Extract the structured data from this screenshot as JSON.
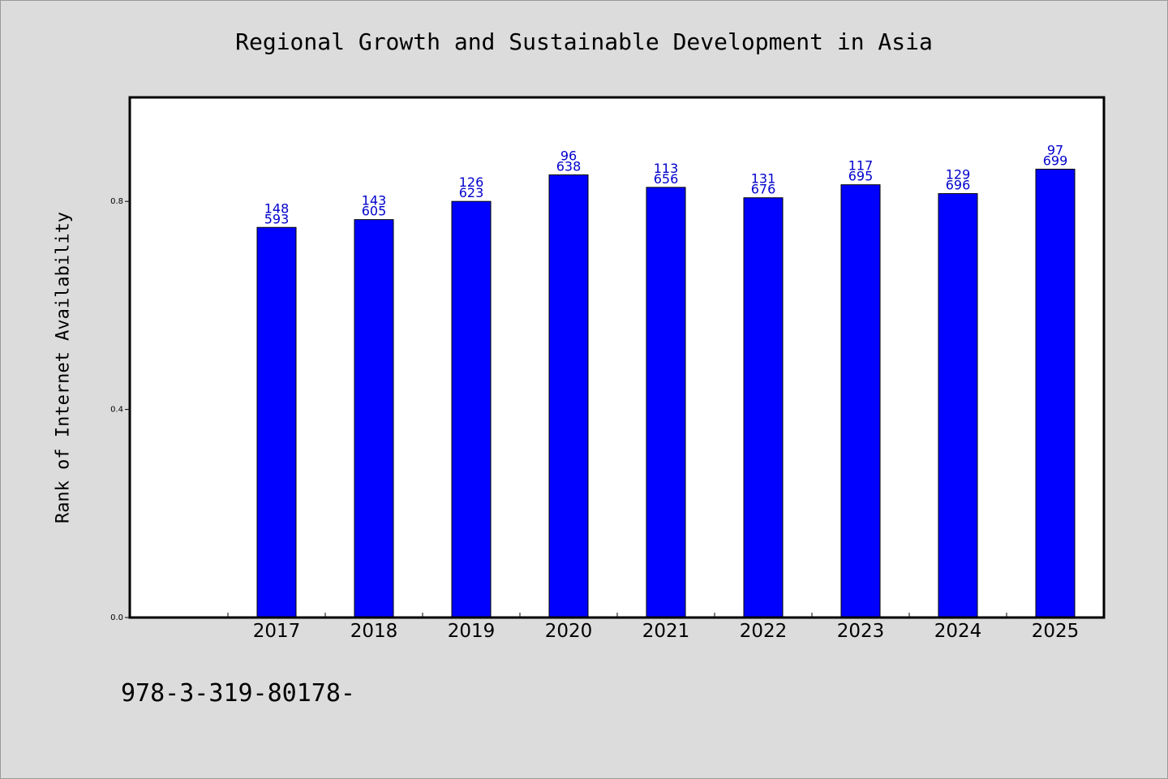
{
  "chart_data": {
    "type": "bar",
    "title": "Regional Growth and Sustainable Development in Asia",
    "xlabel": "",
    "ylabel": "Rank of Internet Availability",
    "categories": [
      "2017",
      "2018",
      "2019",
      "2020",
      "2021",
      "2022",
      "2023",
      "2024",
      "2025"
    ],
    "values": [
      0.75,
      0.765,
      0.8,
      0.851,
      0.827,
      0.807,
      0.832,
      0.815,
      0.862
    ],
    "data_labels": [
      [
        "148",
        "593"
      ],
      [
        "143",
        "605"
      ],
      [
        "126",
        "623"
      ],
      [
        "96",
        "638"
      ],
      [
        "113",
        "656"
      ],
      [
        "131",
        "676"
      ],
      [
        "117",
        "695"
      ],
      [
        "129",
        "696"
      ],
      [
        "97",
        "699"
      ]
    ],
    "ylim": [
      0,
      1.0
    ],
    "yticks": [
      0.0,
      0.4,
      0.8
    ],
    "ytick_labels": [
      "0.0",
      "0.4",
      "0.8"
    ],
    "bar_color": "#0000ff",
    "label_color": "#0000cc",
    "grid": false,
    "legend": "none"
  },
  "footer_text": "978-3-319-80178-"
}
